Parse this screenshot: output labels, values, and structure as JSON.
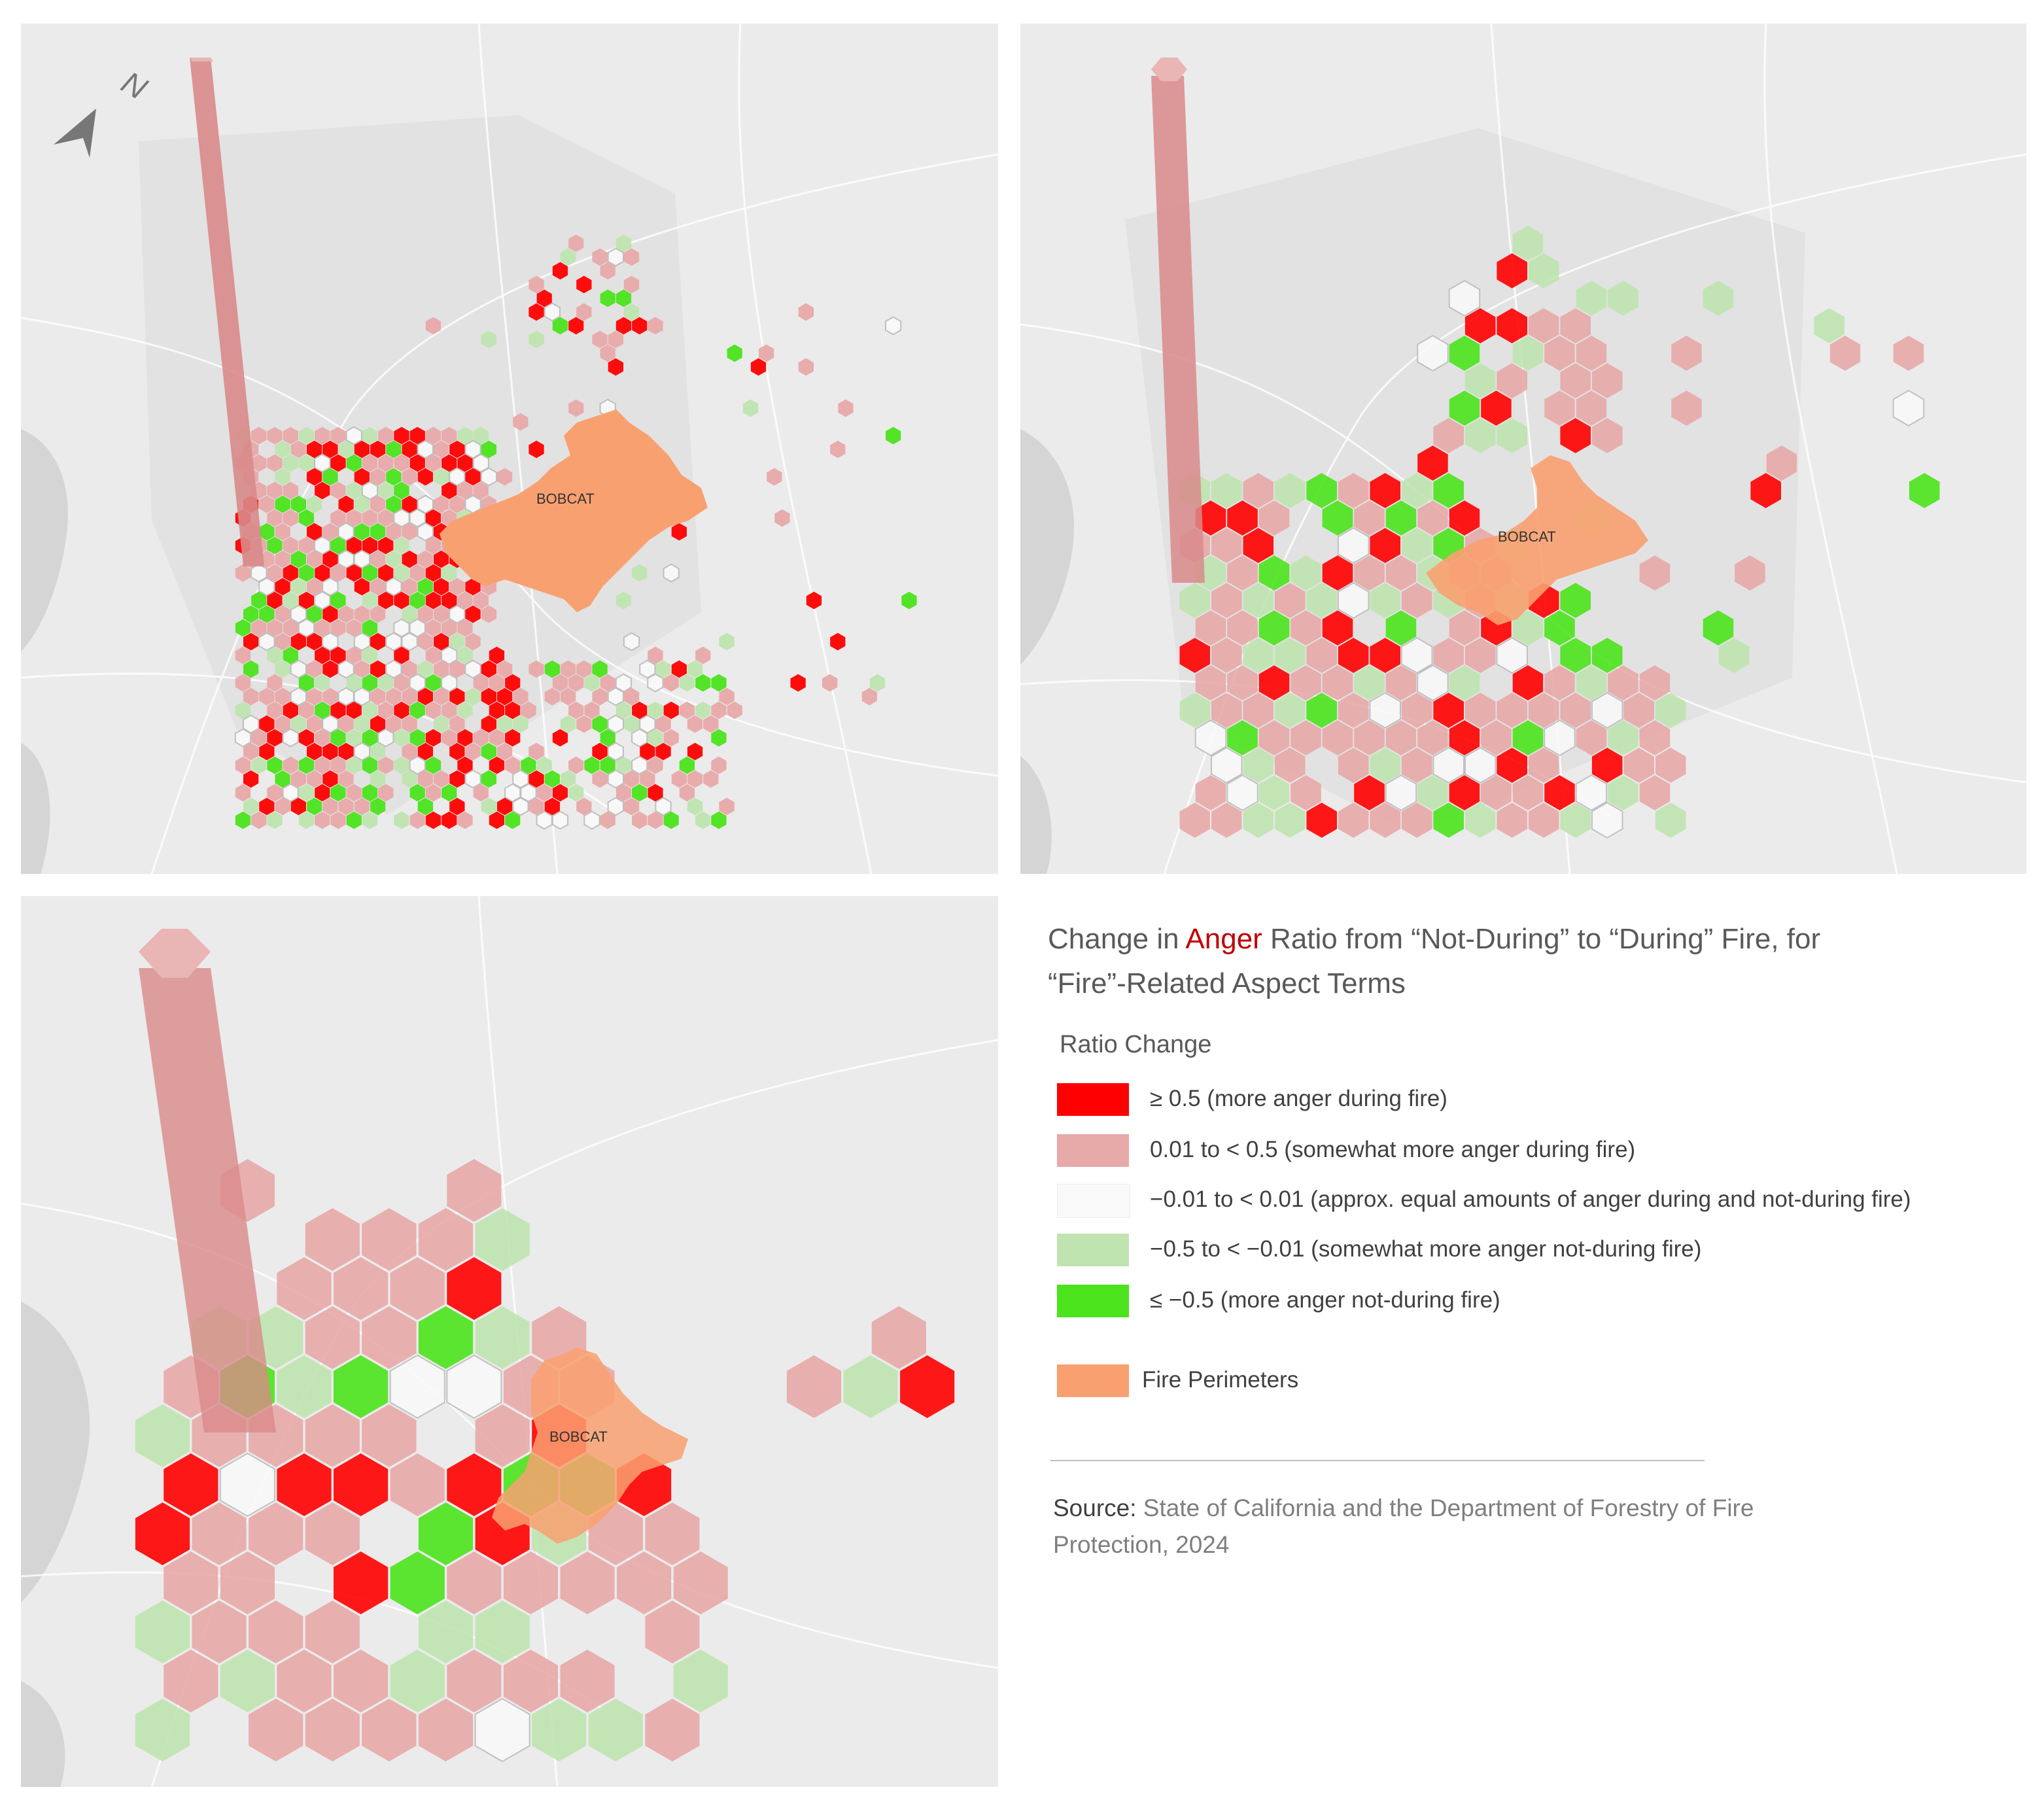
{
  "maps": [
    {
      "fire_label": "BOBCAT",
      "north_label": "N"
    },
    {
      "fire_label": "BOBCAT"
    },
    {
      "fire_label": "BOBCAT"
    }
  ],
  "legend": {
    "title_prefix": "Change in ",
    "title_highlight": "Anger",
    "title_suffix": " Ratio from “Not-During” to “During” Fire, for “Fire”-Related Aspect Terms",
    "subtitle": "Ratio Change",
    "items": [
      {
        "label": "≥ 0.5 (more anger during fire)",
        "color": "#ff0000"
      },
      {
        "label": "0.01 to < 0.5 (somewhat more anger during fire)",
        "color": "#e8a9a9"
      },
      {
        "label": "−0.01 to < 0.01 (approx. equal amounts of anger during and not-during fire)",
        "color": "#f9f9f9"
      },
      {
        "label": "−0.5 to < −0.01 (somewhat more anger not-during fire)",
        "color": "#bfe4b0"
      },
      {
        "label": "≤ −0.5 (more anger not-during fire)",
        "color": "#4be31c"
      }
    ],
    "fire_perimeter_label": "Fire Perimeters",
    "fire_perimeter_color": "#f9a070"
  },
  "source": {
    "label": "Source:",
    "text": " State of California and the Department of Forestry of Fire Protection, 2024"
  }
}
